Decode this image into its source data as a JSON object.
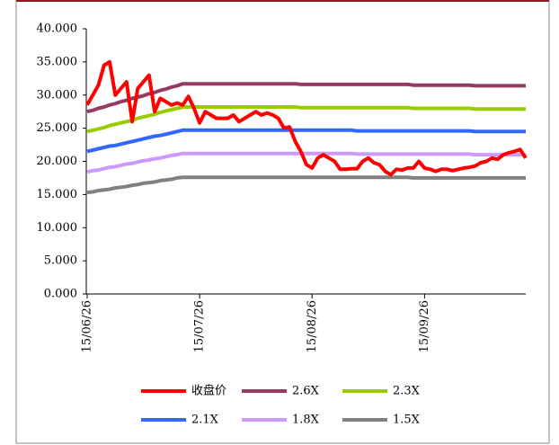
{
  "chart_data": {
    "type": "line",
    "categories": [
      "15/06/26",
      null,
      null,
      null,
      null,
      null,
      null,
      null,
      null,
      null,
      null,
      null,
      null,
      null,
      null,
      null,
      null,
      null,
      null,
      null,
      "15/07/26",
      null,
      null,
      null,
      null,
      null,
      null,
      null,
      null,
      null,
      null,
      null,
      null,
      null,
      null,
      null,
      null,
      null,
      null,
      null,
      "15/08/26",
      null,
      null,
      null,
      null,
      null,
      null,
      null,
      null,
      null,
      null,
      null,
      null,
      null,
      null,
      null,
      null,
      null,
      null,
      null,
      "15/09/26",
      null,
      null,
      null,
      null,
      null,
      null,
      null,
      null,
      null,
      null,
      null,
      null,
      null,
      null,
      null,
      null,
      null,
      null
    ],
    "ylim": [
      0,
      40
    ],
    "yticks": [
      {
        "value": 0,
        "label": "0.000"
      },
      {
        "value": 5,
        "label": "5.000"
      },
      {
        "value": 10,
        "label": "10.000"
      },
      {
        "value": 15,
        "label": "15.000"
      },
      {
        "value": 20,
        "label": "20.000"
      },
      {
        "value": 25,
        "label": "25.000"
      },
      {
        "value": 30,
        "label": "30.000"
      },
      {
        "value": 35,
        "label": "35.000"
      },
      {
        "value": 40,
        "label": "40.000"
      }
    ],
    "series": [
      {
        "name": "收盘价",
        "color": "#ff0000",
        "values": [
          28.5,
          30,
          31.5,
          34.5,
          35,
          30,
          31,
          32,
          26,
          31,
          32,
          33,
          27.5,
          29.5,
          29,
          28.5,
          28.8,
          28.5,
          29.8,
          28,
          25.8,
          27.5,
          27,
          26.5,
          26.5,
          26.5,
          27,
          26,
          26.5,
          27,
          27.5,
          27,
          27.3,
          27,
          26.5,
          25,
          25.2,
          23,
          21.5,
          19.5,
          19,
          20.5,
          21,
          20.5,
          20,
          18.8,
          18.8,
          18.9,
          18.9,
          20,
          20.5,
          19.8,
          19.5,
          18.5,
          18,
          18.8,
          18.7,
          19,
          19,
          20,
          19,
          18.8,
          18.5,
          18.8,
          18.8,
          18.6,
          18.8,
          19,
          19.1,
          19.3,
          19.8,
          20,
          20.5,
          20.3,
          21,
          21.3,
          21.5,
          21.8,
          20.5
        ]
      },
      {
        "name": "2.6X",
        "color": "#953a62",
        "values": [
          27.5,
          27.7,
          28.0,
          28.2,
          28.5,
          28.7,
          29.0,
          29.2,
          29.5,
          29.7,
          29.9,
          30.2,
          30.4,
          30.7,
          30.9,
          31.2,
          31.4,
          31.7,
          31.7,
          31.7,
          31.7,
          31.7,
          31.7,
          31.7,
          31.7,
          31.7,
          31.7,
          31.7,
          31.7,
          31.7,
          31.7,
          31.7,
          31.7,
          31.7,
          31.7,
          31.7,
          31.7,
          31.7,
          31.6,
          31.6,
          31.6,
          31.6,
          31.6,
          31.6,
          31.6,
          31.6,
          31.6,
          31.6,
          31.6,
          31.6,
          31.6,
          31.6,
          31.6,
          31.6,
          31.6,
          31.6,
          31.6,
          31.6,
          31.5,
          31.5,
          31.5,
          31.5,
          31.5,
          31.5,
          31.5,
          31.5,
          31.5,
          31.5,
          31.5,
          31.4,
          31.4,
          31.4,
          31.4,
          31.4,
          31.4,
          31.4,
          31.4,
          31.4,
          31.4
        ]
      },
      {
        "name": "2.3X",
        "color": "#99cc00",
        "values": [
          24.5,
          24.7,
          24.9,
          25.1,
          25.4,
          25.6,
          25.8,
          26.0,
          26.2,
          26.5,
          26.7,
          26.9,
          27.1,
          27.4,
          27.6,
          27.8,
          28.0,
          28.2,
          28.2,
          28.2,
          28.2,
          28.2,
          28.2,
          28.2,
          28.2,
          28.2,
          28.2,
          28.2,
          28.2,
          28.2,
          28.2,
          28.2,
          28.2,
          28.2,
          28.2,
          28.2,
          28.2,
          28.2,
          28.1,
          28.1,
          28.1,
          28.1,
          28.1,
          28.1,
          28.1,
          28.1,
          28.1,
          28.1,
          28.1,
          28.1,
          28.1,
          28.1,
          28.1,
          28.1,
          28.1,
          28.1,
          28.1,
          28.1,
          28.0,
          28.0,
          28.0,
          28.0,
          28.0,
          28.0,
          28.0,
          28.0,
          28.0,
          28.0,
          28.0,
          27.9,
          27.9,
          27.9,
          27.9,
          27.9,
          27.9,
          27.9,
          27.9,
          27.9,
          27.9
        ]
      },
      {
        "name": "2.1X",
        "color": "#3366ff",
        "values": [
          21.5,
          21.7,
          21.9,
          22.1,
          22.3,
          22.4,
          22.6,
          22.8,
          23.0,
          23.2,
          23.4,
          23.6,
          23.8,
          23.9,
          24.1,
          24.3,
          24.5,
          24.7,
          24.7,
          24.7,
          24.7,
          24.7,
          24.7,
          24.7,
          24.7,
          24.7,
          24.7,
          24.7,
          24.7,
          24.7,
          24.7,
          24.7,
          24.7,
          24.7,
          24.7,
          24.7,
          24.7,
          24.7,
          24.7,
          24.7,
          24.7,
          24.7,
          24.7,
          24.7,
          24.7,
          24.7,
          24.7,
          24.7,
          24.6,
          24.6,
          24.6,
          24.6,
          24.6,
          24.6,
          24.6,
          24.6,
          24.6,
          24.6,
          24.6,
          24.6,
          24.6,
          24.6,
          24.6,
          24.6,
          24.6,
          24.6,
          24.6,
          24.6,
          24.6,
          24.5,
          24.5,
          24.5,
          24.5,
          24.5,
          24.5,
          24.5,
          24.5,
          24.5,
          24.5
        ]
      },
      {
        "name": "1.8X",
        "color": "#cc99ff",
        "values": [
          18.4,
          18.6,
          18.7,
          18.9,
          19.1,
          19.2,
          19.4,
          19.6,
          19.7,
          19.9,
          20.1,
          20.2,
          20.4,
          20.5,
          20.7,
          20.9,
          21.0,
          21.2,
          21.2,
          21.2,
          21.2,
          21.2,
          21.2,
          21.2,
          21.2,
          21.2,
          21.2,
          21.2,
          21.2,
          21.2,
          21.2,
          21.2,
          21.2,
          21.2,
          21.2,
          21.2,
          21.2,
          21.2,
          21.2,
          21.2,
          21.2,
          21.2,
          21.2,
          21.2,
          21.2,
          21.2,
          21.2,
          21.2,
          21.1,
          21.1,
          21.1,
          21.1,
          21.1,
          21.1,
          21.1,
          21.1,
          21.1,
          21.1,
          21.1,
          21.1,
          21.1,
          21.1,
          21.1,
          21.1,
          21.1,
          21.1,
          21.1,
          21.1,
          21.1,
          21.0,
          21.0,
          21.0,
          21.0,
          21.0,
          21.0,
          21.0,
          21.0,
          21.0,
          21.0
        ]
      },
      {
        "name": "1.5X",
        "color": "#808080",
        "values": [
          15.3,
          15.4,
          15.6,
          15.7,
          15.8,
          16.0,
          16.1,
          16.2,
          16.4,
          16.5,
          16.7,
          16.8,
          16.9,
          17.1,
          17.2,
          17.3,
          17.5,
          17.6,
          17.6,
          17.6,
          17.6,
          17.6,
          17.6,
          17.6,
          17.6,
          17.6,
          17.6,
          17.6,
          17.6,
          17.6,
          17.6,
          17.6,
          17.6,
          17.6,
          17.6,
          17.6,
          17.6,
          17.6,
          17.6,
          17.6,
          17.6,
          17.6,
          17.6,
          17.6,
          17.6,
          17.6,
          17.6,
          17.6,
          17.6,
          17.6,
          17.6,
          17.6,
          17.6,
          17.6,
          17.6,
          17.6,
          17.6,
          17.6,
          17.5,
          17.5,
          17.5,
          17.5,
          17.5,
          17.5,
          17.5,
          17.5,
          17.5,
          17.5,
          17.5,
          17.5,
          17.5,
          17.5,
          17.5,
          17.5,
          17.5,
          17.5,
          17.5,
          17.5,
          17.5
        ]
      }
    ]
  }
}
